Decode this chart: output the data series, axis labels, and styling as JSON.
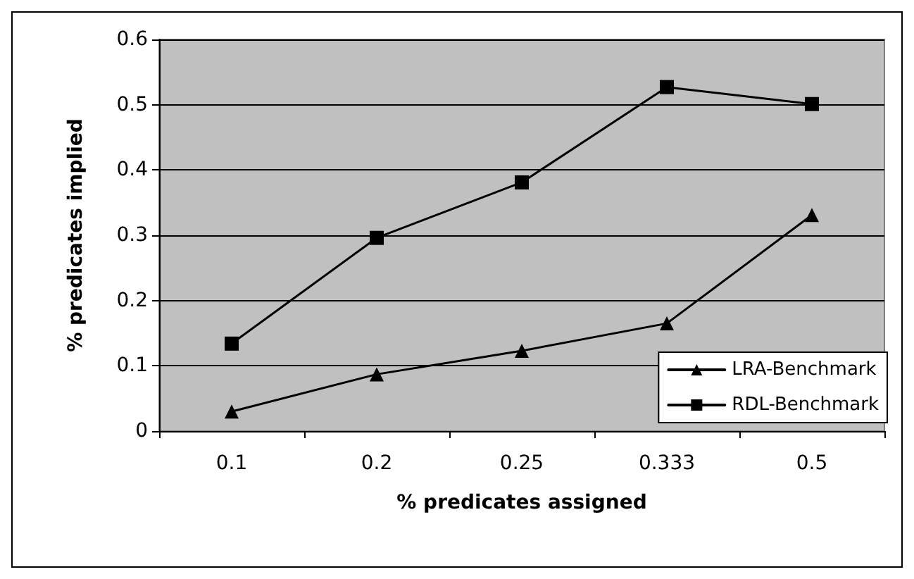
{
  "chart_data": {
    "type": "line",
    "xlabel": "% predicates assigned",
    "ylabel": "% predicates implied",
    "categories": [
      "0.1",
      "0.2",
      "0.25",
      "0.333",
      "0.5"
    ],
    "series": [
      {
        "name": "LRA-Benchmark",
        "color": "#000000",
        "marker": "triangle",
        "values": [
          0.03,
          0.087,
          0.123,
          0.165,
          0.331
        ]
      },
      {
        "name": "RDL-Benchmark",
        "color": "#000000",
        "marker": "square",
        "values": [
          0.134,
          0.296,
          0.381,
          0.527,
          0.501
        ]
      }
    ],
    "ylim": [
      0,
      0.6
    ],
    "yticks": [
      0,
      0.1,
      0.2,
      0.3,
      0.4,
      0.5,
      0.6
    ],
    "grid": "y",
    "legend": "bottom right",
    "line_style": "solid"
  }
}
